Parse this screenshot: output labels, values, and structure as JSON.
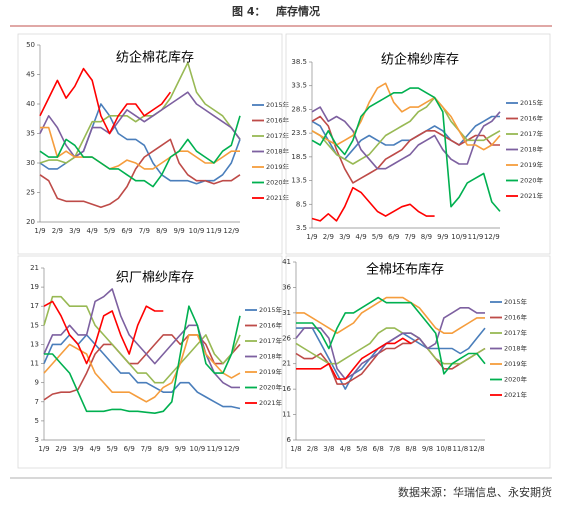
{
  "header": {
    "figure": "图 4：",
    "title": "库存情况"
  },
  "source": "数据来源：华瑞信息、永安期货",
  "chart_data": [
    {
      "type": "line",
      "title": "纺企棉花库存",
      "categories": [
        "1/9",
        null,
        "2/9",
        null,
        "3/9",
        null,
        "4/9",
        null,
        "5/9",
        null,
        "6/9",
        null,
        "7/9",
        null,
        "8/9",
        null,
        "9/9",
        null,
        "10/9",
        null,
        "11/9",
        null,
        "12/9",
        null
      ],
      "ylim": [
        20,
        50
      ],
      "yticks": [
        20,
        25,
        30,
        35,
        40,
        45,
        50
      ],
      "series": [
        {
          "name": "2015年",
          "color": "#4a7ebb",
          "values": [
            30,
            29,
            29,
            30,
            31,
            32,
            36,
            40,
            38,
            35,
            34,
            34,
            33,
            30,
            28,
            27,
            27,
            27,
            26.5,
            27,
            27,
            28,
            30,
            34
          ]
        },
        {
          "name": "2016年",
          "color": "#be4b48",
          "values": [
            28,
            27,
            24,
            23.5,
            23.5,
            23.5,
            23,
            22.5,
            23,
            24,
            26,
            29,
            31,
            32,
            33,
            34,
            30,
            28,
            27,
            27,
            26.5,
            27,
            27,
            28
          ]
        },
        {
          "name": "2017年",
          "color": "#98b954",
          "values": [
            30,
            30.5,
            30.5,
            30,
            31,
            34,
            37,
            37,
            38,
            38,
            38,
            37,
            38,
            38,
            39,
            41,
            44,
            47,
            42,
            40,
            39,
            38,
            36,
            34
          ]
        },
        {
          "name": "2018年",
          "color": "#7d60a0",
          "values": [
            35,
            38,
            36,
            33,
            31,
            32,
            36,
            36,
            35,
            37,
            39,
            38,
            37,
            38,
            39,
            40,
            41,
            42,
            40,
            39,
            38,
            37,
            36,
            34
          ]
        },
        {
          "name": "2019年",
          "color": "#f59d3d",
          "values": [
            36,
            36,
            31,
            32,
            31,
            31,
            31,
            30,
            29,
            29.5,
            30.5,
            30,
            29,
            29,
            30,
            31,
            32,
            32,
            31,
            30,
            30,
            31,
            32,
            32
          ]
        },
        {
          "name": "2020年",
          "color": "#00b050",
          "values": [
            32,
            31,
            31,
            34,
            33,
            31,
            31,
            30,
            29,
            29,
            28,
            27,
            27,
            26,
            28,
            31,
            32,
            34,
            32,
            31,
            30,
            32,
            33,
            38
          ]
        },
        {
          "name": "2021年",
          "color": "#ff0000",
          "values": [
            38,
            41,
            44,
            41,
            43,
            46,
            44,
            38,
            35,
            38,
            40,
            40,
            38,
            39,
            40,
            42,
            null,
            null,
            null,
            null,
            null,
            null,
            null,
            null
          ]
        }
      ]
    },
    {
      "type": "line",
      "title": "纺企棉纱库存",
      "categories": [
        "1/9",
        null,
        "2/9",
        null,
        "3/9",
        null,
        "4/9",
        null,
        "5/9",
        null,
        "6/9",
        null,
        "7/9",
        null,
        "8/9",
        null,
        "9/9",
        null,
        "10/9",
        null,
        "11/9",
        null,
        "12/9",
        null
      ],
      "ylim": [
        3.5,
        38.5
      ],
      "yticks": [
        3.5,
        8.5,
        13.5,
        18.5,
        23.5,
        28.5,
        33.5,
        38.5
      ],
      "series": [
        {
          "name": "2015年",
          "color": "#4a7ebb",
          "values": [
            26,
            25,
            22,
            19,
            18,
            20,
            22,
            23,
            22,
            21,
            21,
            22,
            22,
            23,
            24,
            25,
            24,
            22,
            21,
            23,
            25,
            26,
            27,
            27
          ]
        },
        {
          "name": "2016年",
          "color": "#be4b48",
          "values": [
            26,
            27,
            25,
            20,
            16,
            13,
            14,
            15,
            16,
            18,
            19,
            20,
            22,
            23,
            24,
            24,
            23,
            22,
            21,
            22,
            23,
            23,
            21,
            21
          ]
        },
        {
          "name": "2017年",
          "color": "#98b954",
          "values": [
            24,
            23,
            21,
            19,
            18,
            17,
            18,
            19,
            21,
            23,
            24,
            25,
            26,
            28,
            29,
            31,
            29,
            26,
            24,
            22,
            22,
            22,
            23,
            24
          ]
        },
        {
          "name": "2018年",
          "color": "#7d60a0",
          "values": [
            28,
            29,
            26,
            27,
            26,
            24,
            20,
            18,
            16,
            16,
            17,
            18,
            19,
            21,
            22,
            23,
            20,
            18,
            17,
            17,
            22,
            25,
            26,
            28
          ]
        },
        {
          "name": "2019年",
          "color": "#f59d3d",
          "values": [
            24,
            23,
            22,
            21,
            22,
            23,
            26,
            30,
            33,
            34,
            30,
            28,
            29,
            29,
            30,
            31,
            29,
            27,
            24,
            21,
            21,
            20,
            21,
            23
          ]
        },
        {
          "name": "2020年",
          "color": "#00b050",
          "values": [
            22,
            21,
            24,
            21,
            19,
            22,
            27,
            29,
            30,
            31,
            32,
            32,
            33,
            33,
            32,
            31,
            28,
            8,
            10,
            13,
            14,
            15,
            9,
            7
          ]
        },
        {
          "name": "2021年",
          "color": "#ff0000",
          "values": [
            5.5,
            5,
            6.5,
            5,
            8,
            12,
            11,
            9,
            7,
            6,
            7,
            8,
            8.5,
            7,
            6,
            6,
            null,
            null,
            null,
            null,
            null,
            null,
            null,
            null
          ]
        }
      ]
    },
    {
      "type": "line",
      "title": "织厂棉纱库存",
      "categories": [
        "1/9",
        null,
        "2/9",
        null,
        "3/9",
        null,
        "4/9",
        null,
        "5/9",
        null,
        "6/9",
        null,
        "7/9",
        null,
        "8/9",
        null,
        "9/9",
        null,
        "10/9",
        null,
        "11/9",
        null,
        "12/9",
        null
      ],
      "ylim": [
        3,
        21
      ],
      "yticks": [
        3,
        5,
        7,
        9,
        11,
        13,
        15,
        17,
        19,
        21
      ],
      "series": [
        {
          "name": "2015年",
          "color": "#4a7ebb",
          "values": [
            11,
            13,
            13,
            14,
            13,
            14,
            13,
            12,
            11,
            10,
            10,
            9,
            9,
            8.5,
            8,
            8,
            9,
            9,
            8,
            7.5,
            7,
            6.5,
            6.5,
            6.3
          ]
        },
        {
          "name": "2016年",
          "color": "#be4b48",
          "values": [
            7.2,
            7.8,
            8,
            8,
            8.3,
            10,
            12,
            13,
            13,
            12,
            11,
            11,
            12,
            13,
            14,
            14,
            13,
            14,
            14,
            13,
            11,
            11,
            12,
            13
          ]
        },
        {
          "name": "2017年",
          "color": "#98b954",
          "values": [
            15,
            18,
            18,
            17,
            17,
            17,
            15,
            14,
            13,
            12,
            11,
            10,
            10,
            9,
            9,
            10,
            11,
            12,
            13,
            14,
            12,
            11,
            12,
            14
          ]
        },
        {
          "name": "2018年",
          "color": "#7d60a0",
          "values": [
            12,
            14,
            14,
            15,
            14,
            14,
            17.5,
            18,
            18.8,
            16,
            14,
            13,
            12,
            11,
            12,
            13,
            14,
            15,
            15,
            12,
            10,
            9,
            8.5,
            8.5
          ]
        },
        {
          "name": "2019年",
          "color": "#f59d3d",
          "values": [
            10,
            11,
            12,
            13,
            12.5,
            12,
            10,
            9,
            8,
            8,
            8,
            7.5,
            7,
            7.5,
            8.5,
            9,
            11,
            14,
            14,
            12,
            11,
            10,
            9.5,
            10
          ]
        },
        {
          "name": "2020年",
          "color": "#00b050",
          "values": [
            12,
            12,
            11,
            10,
            8,
            6,
            6,
            6,
            6.2,
            6.2,
            6,
            6,
            5.9,
            5.8,
            6,
            7,
            12,
            17,
            15,
            11,
            10,
            10,
            12,
            16
          ]
        },
        {
          "name": "2021年",
          "color": "#ff0000",
          "values": [
            17,
            17.5,
            16,
            14,
            13,
            11,
            13,
            16,
            16.5,
            14,
            12,
            15,
            17,
            16.5,
            16.5,
            null,
            null,
            null,
            null,
            null,
            null,
            null,
            null,
            null
          ]
        }
      ]
    },
    {
      "type": "line",
      "title": "全棉坯布库存",
      "categories": [
        "1/8",
        null,
        "2/8",
        null,
        "3/8",
        null,
        "4/8",
        null,
        "5/8",
        null,
        "6/8",
        null,
        "7/8",
        null,
        "8/8",
        null,
        "9/8",
        null,
        "10/8",
        null,
        "11/8",
        null,
        "12/8",
        null
      ],
      "ylim": [
        6,
        41
      ],
      "yticks": [
        6,
        11,
        16,
        21,
        26,
        31,
        36,
        41
      ],
      "series": [
        {
          "name": "2015年",
          "color": "#4a7ebb",
          "values": [
            28,
            28,
            28,
            25,
            22,
            19,
            16,
            19,
            20,
            22,
            24,
            25,
            26,
            27,
            26,
            25,
            24,
            24,
            24,
            24,
            23,
            24,
            26,
            28
          ]
        },
        {
          "name": "2016年",
          "color": "#be4b48",
          "values": [
            23,
            22,
            22,
            23,
            21,
            17,
            17,
            18,
            19,
            21,
            23,
            24,
            24,
            25,
            25,
            26,
            24,
            22,
            20,
            20,
            21,
            22,
            23,
            24
          ]
        },
        {
          "name": "2017年",
          "color": "#98b954",
          "values": [
            25,
            24,
            23,
            22,
            21,
            21,
            22,
            23,
            24,
            25,
            27,
            28,
            28,
            27,
            27,
            26,
            24,
            22,
            21,
            21,
            21,
            22,
            23,
            24
          ]
        },
        {
          "name": "2018年",
          "color": "#7d60a0",
          "values": [
            26,
            28,
            28,
            28,
            26,
            20,
            18,
            19,
            21,
            22,
            23,
            25,
            26,
            27,
            27,
            26,
            24,
            25,
            30,
            31,
            32,
            32,
            31,
            31
          ]
        },
        {
          "name": "2019年",
          "color": "#f59d3d",
          "values": [
            31,
            31,
            30,
            29,
            28,
            27,
            28,
            29,
            31,
            32,
            33,
            34,
            34,
            34,
            33,
            32,
            30,
            28,
            27,
            27,
            28,
            29,
            30,
            30
          ]
        },
        {
          "name": "2020年",
          "color": "#00b050",
          "values": [
            29,
            29,
            29,
            27,
            24,
            28,
            31,
            31,
            32,
            33,
            34,
            33,
            33,
            33,
            33,
            31,
            29,
            27,
            19,
            21,
            22,
            23,
            23,
            21
          ]
        },
        {
          "name": "2021年",
          "color": "#ff0000",
          "values": [
            20,
            20,
            20,
            20,
            21,
            18,
            18,
            20,
            22,
            23,
            24,
            25,
            25,
            26,
            25,
            null,
            null,
            null,
            null,
            null,
            null,
            null,
            null,
            null
          ]
        }
      ]
    }
  ]
}
